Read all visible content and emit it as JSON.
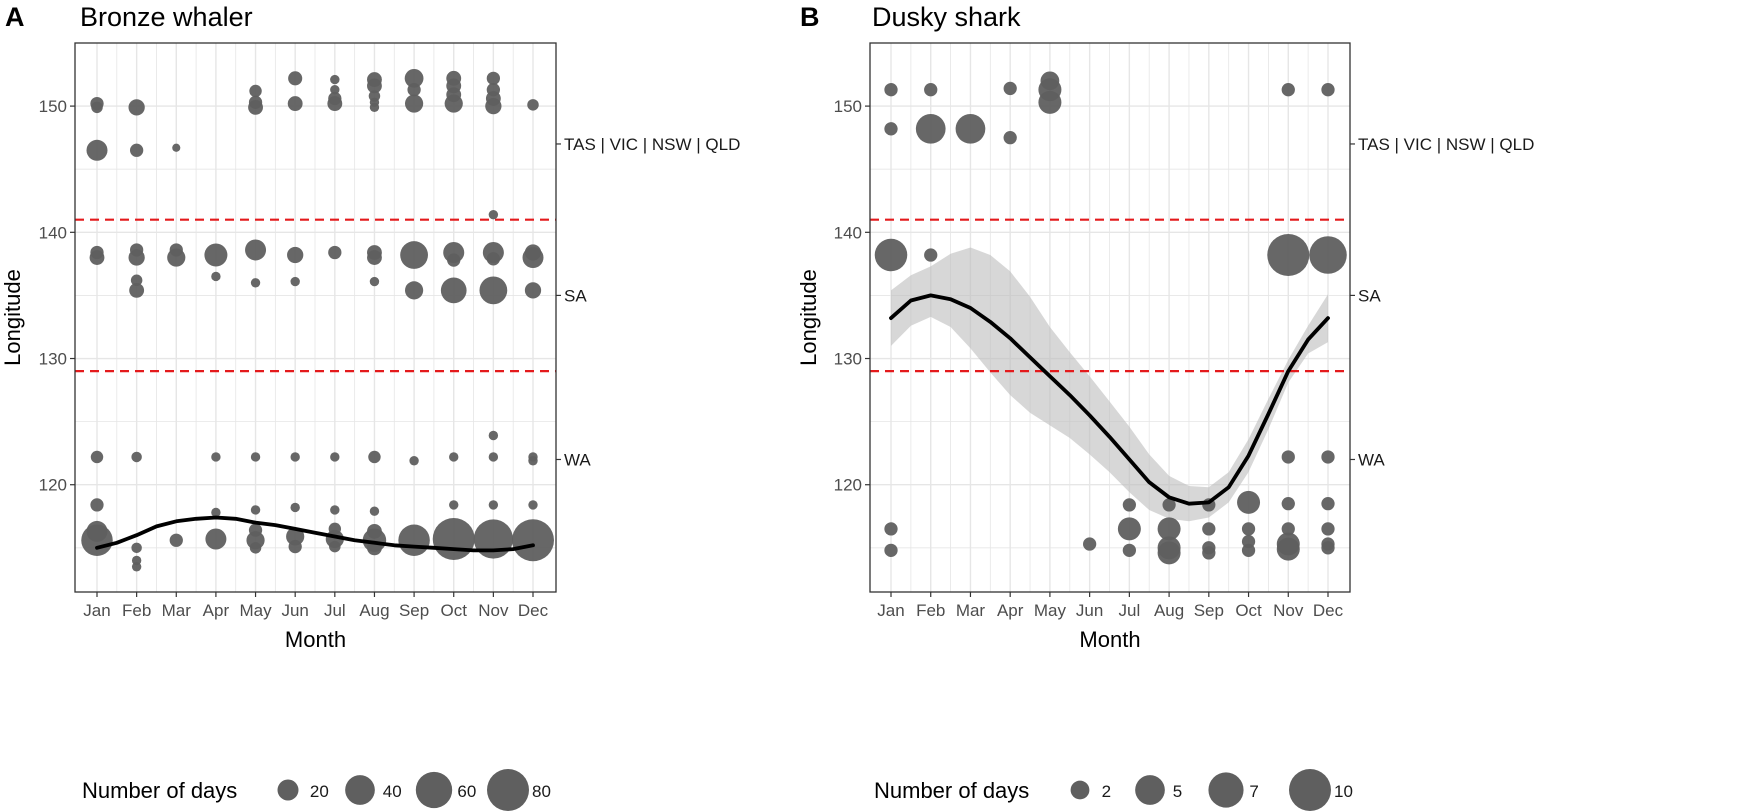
{
  "figure": {
    "colors": {
      "point": "#5f5f5f",
      "grid": "#e6e6e6",
      "ref_line": "#e41a1c",
      "smooth": "#000000",
      "ribbon": "#bdbdbd"
    },
    "legend_title": "Number of days"
  },
  "chart_data": [
    {
      "type": "scatter",
      "panel_label": "A",
      "title": "Bronze whaler",
      "xlabel": "Month",
      "ylabel": "Longitude",
      "categories": [
        "Jan",
        "Feb",
        "Mar",
        "Apr",
        "May",
        "Jun",
        "Jul",
        "Aug",
        "Sep",
        "Oct",
        "Nov",
        "Dec"
      ],
      "ylim": [
        111.5,
        155
      ],
      "yticks": [
        120,
        130,
        140,
        150
      ],
      "grid": true,
      "ref_lines": [
        129,
        141
      ],
      "regions": [
        {
          "label": "TAS | VIC | NSW | QLD",
          "y": 147
        },
        {
          "label": "SA",
          "y": 135
        },
        {
          "label": "WA",
          "y": 122
        }
      ],
      "size_max": 80,
      "legend": {
        "title": "Number of days",
        "sizes": [
          20,
          40,
          60,
          80
        ],
        "labels": [
          "20",
          "40",
          "60",
          "80"
        ]
      },
      "points": [
        {
          "x": 1,
          "y": 150.2,
          "size": 8
        },
        {
          "x": 1,
          "y": 149.9,
          "size": 6
        },
        {
          "x": 1,
          "y": 146.5,
          "size": 20
        },
        {
          "x": 1,
          "y": 138.4,
          "size": 8
        },
        {
          "x": 1,
          "y": 138.0,
          "size": 10
        },
        {
          "x": 1,
          "y": 122.2,
          "size": 7
        },
        {
          "x": 1,
          "y": 118.4,
          "size": 8
        },
        {
          "x": 1,
          "y": 116.3,
          "size": 20
        },
        {
          "x": 1,
          "y": 115.6,
          "size": 45
        },
        {
          "x": 2,
          "y": 149.9,
          "size": 12
        },
        {
          "x": 2,
          "y": 146.5,
          "size": 8
        },
        {
          "x": 2,
          "y": 138.6,
          "size": 8
        },
        {
          "x": 2,
          "y": 138.0,
          "size": 12
        },
        {
          "x": 2,
          "y": 136.2,
          "size": 6
        },
        {
          "x": 2,
          "y": 135.4,
          "size": 10
        },
        {
          "x": 2,
          "y": 122.2,
          "size": 5
        },
        {
          "x": 2,
          "y": 115.0,
          "size": 5
        },
        {
          "x": 2,
          "y": 114.0,
          "size": 4
        },
        {
          "x": 2,
          "y": 113.5,
          "size": 4
        },
        {
          "x": 3,
          "y": 146.7,
          "size": 3
        },
        {
          "x": 3,
          "y": 138.6,
          "size": 8
        },
        {
          "x": 3,
          "y": 138.0,
          "size": 15
        },
        {
          "x": 3,
          "y": 115.6,
          "size": 8
        },
        {
          "x": 4,
          "y": 138.2,
          "size": 24
        },
        {
          "x": 4,
          "y": 136.5,
          "size": 4
        },
        {
          "x": 4,
          "y": 122.2,
          "size": 4
        },
        {
          "x": 4,
          "y": 117.8,
          "size": 4
        },
        {
          "x": 4,
          "y": 115.7,
          "size": 20
        },
        {
          "x": 5,
          "y": 151.2,
          "size": 7
        },
        {
          "x": 5,
          "y": 150.3,
          "size": 8
        },
        {
          "x": 5,
          "y": 149.9,
          "size": 10
        },
        {
          "x": 5,
          "y": 138.6,
          "size": 20
        },
        {
          "x": 5,
          "y": 136.0,
          "size": 4
        },
        {
          "x": 5,
          "y": 122.2,
          "size": 4
        },
        {
          "x": 5,
          "y": 118.0,
          "size": 4
        },
        {
          "x": 5,
          "y": 116.4,
          "size": 8
        },
        {
          "x": 5,
          "y": 115.6,
          "size": 15
        },
        {
          "x": 5,
          "y": 115.0,
          "size": 6
        },
        {
          "x": 6,
          "y": 152.2,
          "size": 9
        },
        {
          "x": 6,
          "y": 150.2,
          "size": 10
        },
        {
          "x": 6,
          "y": 138.2,
          "size": 12
        },
        {
          "x": 6,
          "y": 136.1,
          "size": 4
        },
        {
          "x": 6,
          "y": 122.2,
          "size": 4
        },
        {
          "x": 6,
          "y": 118.2,
          "size": 4
        },
        {
          "x": 6,
          "y": 115.9,
          "size": 15
        },
        {
          "x": 6,
          "y": 115.1,
          "size": 8
        },
        {
          "x": 7,
          "y": 152.1,
          "size": 4
        },
        {
          "x": 7,
          "y": 151.3,
          "size": 4
        },
        {
          "x": 7,
          "y": 150.6,
          "size": 8
        },
        {
          "x": 7,
          "y": 150.2,
          "size": 10
        },
        {
          "x": 7,
          "y": 138.4,
          "size": 8
        },
        {
          "x": 7,
          "y": 122.2,
          "size": 4
        },
        {
          "x": 7,
          "y": 118.0,
          "size": 4
        },
        {
          "x": 7,
          "y": 116.5,
          "size": 7
        },
        {
          "x": 7,
          "y": 115.7,
          "size": 15
        },
        {
          "x": 7,
          "y": 115.1,
          "size": 6
        },
        {
          "x": 8,
          "y": 152.1,
          "size": 10
        },
        {
          "x": 8,
          "y": 151.6,
          "size": 10
        },
        {
          "x": 8,
          "y": 150.8,
          "size": 6
        },
        {
          "x": 8,
          "y": 150.3,
          "size": 4
        },
        {
          "x": 8,
          "y": 149.9,
          "size": 4
        },
        {
          "x": 8,
          "y": 138.4,
          "size": 10
        },
        {
          "x": 8,
          "y": 138.0,
          "size": 10
        },
        {
          "x": 8,
          "y": 136.1,
          "size": 4
        },
        {
          "x": 8,
          "y": 122.2,
          "size": 7
        },
        {
          "x": 8,
          "y": 117.9,
          "size": 4
        },
        {
          "x": 8,
          "y": 116.3,
          "size": 10
        },
        {
          "x": 8,
          "y": 115.6,
          "size": 25
        },
        {
          "x": 8,
          "y": 115.0,
          "size": 10
        },
        {
          "x": 9,
          "y": 152.2,
          "size": 16
        },
        {
          "x": 9,
          "y": 151.3,
          "size": 8
        },
        {
          "x": 9,
          "y": 150.2,
          "size": 15
        },
        {
          "x": 9,
          "y": 138.2,
          "size": 35
        },
        {
          "x": 9,
          "y": 135.4,
          "size": 15
        },
        {
          "x": 9,
          "y": 121.9,
          "size": 4
        },
        {
          "x": 9,
          "y": 115.6,
          "size": 45
        },
        {
          "x": 10,
          "y": 152.2,
          "size": 10
        },
        {
          "x": 10,
          "y": 151.6,
          "size": 10
        },
        {
          "x": 10,
          "y": 150.9,
          "size": 10
        },
        {
          "x": 10,
          "y": 150.2,
          "size": 15
        },
        {
          "x": 10,
          "y": 138.4,
          "size": 20
        },
        {
          "x": 10,
          "y": 137.8,
          "size": 8
        },
        {
          "x": 10,
          "y": 135.4,
          "size": 30
        },
        {
          "x": 10,
          "y": 122.2,
          "size": 4
        },
        {
          "x": 10,
          "y": 118.4,
          "size": 4
        },
        {
          "x": 10,
          "y": 115.7,
          "size": 80
        },
        {
          "x": 11,
          "y": 152.2,
          "size": 8
        },
        {
          "x": 11,
          "y": 151.3,
          "size": 8
        },
        {
          "x": 11,
          "y": 150.6,
          "size": 10
        },
        {
          "x": 11,
          "y": 150.0,
          "size": 12
        },
        {
          "x": 11,
          "y": 141.4,
          "size": 4
        },
        {
          "x": 11,
          "y": 138.4,
          "size": 20
        },
        {
          "x": 11,
          "y": 137.9,
          "size": 8
        },
        {
          "x": 11,
          "y": 135.4,
          "size": 35
        },
        {
          "x": 11,
          "y": 123.9,
          "size": 4
        },
        {
          "x": 11,
          "y": 122.2,
          "size": 4
        },
        {
          "x": 11,
          "y": 118.4,
          "size": 4
        },
        {
          "x": 11,
          "y": 115.7,
          "size": 70
        },
        {
          "x": 12,
          "y": 150.1,
          "size": 6
        },
        {
          "x": 12,
          "y": 138.4,
          "size": 12
        },
        {
          "x": 12,
          "y": 138.0,
          "size": 20
        },
        {
          "x": 12,
          "y": 135.4,
          "size": 12
        },
        {
          "x": 12,
          "y": 122.2,
          "size": 4
        },
        {
          "x": 12,
          "y": 121.9,
          "size": 4
        },
        {
          "x": 12,
          "y": 118.4,
          "size": 4
        },
        {
          "x": 12,
          "y": 115.6,
          "size": 80
        }
      ],
      "smooth": {
        "x": [
          1,
          1.5,
          2,
          2.5,
          3,
          3.5,
          4,
          4.5,
          5,
          5.5,
          6,
          6.5,
          7,
          7.5,
          8,
          8.5,
          9,
          9.5,
          10,
          10.5,
          11,
          11.5,
          12
        ],
        "y": [
          115.0,
          115.4,
          116.0,
          116.7,
          117.1,
          117.3,
          117.4,
          117.3,
          117.0,
          116.8,
          116.5,
          116.2,
          115.9,
          115.6,
          115.4,
          115.2,
          115.1,
          115.0,
          114.9,
          114.8,
          114.8,
          114.9,
          115.2
        ]
      }
    },
    {
      "type": "scatter",
      "panel_label": "B",
      "title": "Dusky shark",
      "xlabel": "Month",
      "ylabel": "Longitude",
      "categories": [
        "Jan",
        "Feb",
        "Mar",
        "Apr",
        "May",
        "Jun",
        "Jul",
        "Aug",
        "Sep",
        "Oct",
        "Nov",
        "Dec"
      ],
      "ylim": [
        111.5,
        155
      ],
      "yticks": [
        120,
        130,
        140,
        150
      ],
      "grid": true,
      "ref_lines": [
        129,
        141
      ],
      "regions": [
        {
          "label": "TAS | VIC | NSW | QLD",
          "y": 147
        },
        {
          "label": "SA",
          "y": 135
        },
        {
          "label": "WA",
          "y": 122
        }
      ],
      "size_max": 10,
      "legend": {
        "title": "Number of days",
        "sizes": [
          2,
          5,
          7,
          10
        ],
        "labels": [
          "2",
          "5",
          "7",
          "10"
        ]
      },
      "points": [
        {
          "x": 1,
          "y": 151.3,
          "size": 1
        },
        {
          "x": 1,
          "y": 148.2,
          "size": 1
        },
        {
          "x": 1,
          "y": 138.2,
          "size": 6
        },
        {
          "x": 1,
          "y": 116.5,
          "size": 1
        },
        {
          "x": 1,
          "y": 114.8,
          "size": 1
        },
        {
          "x": 2,
          "y": 151.3,
          "size": 1
        },
        {
          "x": 2,
          "y": 148.2,
          "size": 5
        },
        {
          "x": 2,
          "y": 138.2,
          "size": 1
        },
        {
          "x": 3,
          "y": 148.2,
          "size": 5
        },
        {
          "x": 4,
          "y": 151.4,
          "size": 1
        },
        {
          "x": 4,
          "y": 147.5,
          "size": 1
        },
        {
          "x": 5,
          "y": 152.0,
          "size": 2
        },
        {
          "x": 5,
          "y": 151.3,
          "size": 3
        },
        {
          "x": 5,
          "y": 150.3,
          "size": 3
        },
        {
          "x": 6,
          "y": 115.3,
          "size": 1
        },
        {
          "x": 7,
          "y": 118.4,
          "size": 1
        },
        {
          "x": 7,
          "y": 116.5,
          "size": 3
        },
        {
          "x": 7,
          "y": 114.8,
          "size": 1
        },
        {
          "x": 8,
          "y": 118.4,
          "size": 1
        },
        {
          "x": 8,
          "y": 116.5,
          "size": 3
        },
        {
          "x": 8,
          "y": 115.0,
          "size": 3
        },
        {
          "x": 8,
          "y": 114.6,
          "size": 3
        },
        {
          "x": 9,
          "y": 118.4,
          "size": 1
        },
        {
          "x": 9,
          "y": 116.5,
          "size": 1
        },
        {
          "x": 9,
          "y": 115.0,
          "size": 1
        },
        {
          "x": 9,
          "y": 114.6,
          "size": 1
        },
        {
          "x": 10,
          "y": 118.6,
          "size": 3
        },
        {
          "x": 10,
          "y": 116.5,
          "size": 1
        },
        {
          "x": 10,
          "y": 115.5,
          "size": 1
        },
        {
          "x": 10,
          "y": 114.8,
          "size": 1
        },
        {
          "x": 11,
          "y": 151.3,
          "size": 1
        },
        {
          "x": 11,
          "y": 138.2,
          "size": 10
        },
        {
          "x": 11,
          "y": 122.2,
          "size": 1
        },
        {
          "x": 11,
          "y": 118.5,
          "size": 1
        },
        {
          "x": 11,
          "y": 116.5,
          "size": 1
        },
        {
          "x": 11,
          "y": 115.3,
          "size": 3
        },
        {
          "x": 11,
          "y": 114.9,
          "size": 3
        },
        {
          "x": 12,
          "y": 151.3,
          "size": 1
        },
        {
          "x": 12,
          "y": 138.2,
          "size": 8
        },
        {
          "x": 12,
          "y": 122.2,
          "size": 1
        },
        {
          "x": 12,
          "y": 118.5,
          "size": 1
        },
        {
          "x": 12,
          "y": 116.5,
          "size": 1
        },
        {
          "x": 12,
          "y": 115.3,
          "size": 1
        },
        {
          "x": 12,
          "y": 115.0,
          "size": 1
        }
      ],
      "smooth": {
        "x": [
          1,
          1.5,
          2,
          2.5,
          3,
          3.5,
          4,
          4.5,
          5,
          5.5,
          6,
          6.5,
          7,
          7.5,
          8,
          8.5,
          9,
          9.5,
          10,
          10.5,
          11,
          11.5,
          12
        ],
        "y": [
          133.2,
          134.6,
          135.0,
          134.7,
          134.0,
          132.9,
          131.6,
          130.1,
          128.6,
          127.1,
          125.5,
          123.8,
          122.0,
          120.2,
          119.0,
          118.5,
          118.6,
          119.8,
          122.3,
          125.6,
          129.0,
          131.5,
          133.2
        ],
        "lower": [
          131.0,
          132.6,
          133.3,
          132.5,
          130.8,
          128.9,
          127.1,
          125.7,
          124.7,
          123.7,
          122.4,
          121.0,
          119.4,
          118.0,
          117.3,
          117.1,
          117.4,
          118.6,
          121.0,
          124.4,
          128.1,
          130.4,
          131.3
        ],
        "upper": [
          135.4,
          136.6,
          137.3,
          138.3,
          138.8,
          138.2,
          136.9,
          134.9,
          132.5,
          130.5,
          128.6,
          126.6,
          124.6,
          122.4,
          120.7,
          119.9,
          119.8,
          121.0,
          123.6,
          126.8,
          129.9,
          132.6,
          135.1
        ]
      }
    }
  ]
}
